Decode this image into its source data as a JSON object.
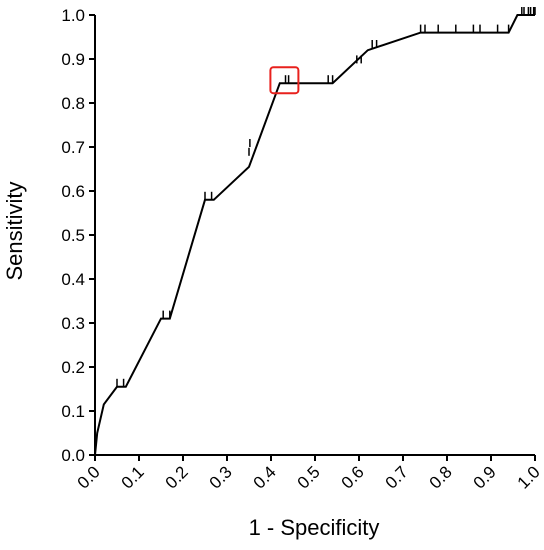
{
  "chart_data": {
    "type": "line",
    "title": "",
    "xlabel": "1 - Specificity",
    "ylabel": "Sensitivity",
    "xlim": [
      0.0,
      1.0
    ],
    "ylim": [
      0.0,
      1.0
    ],
    "x_ticks": [
      "0.0",
      "0.1",
      "0.2",
      "0.3",
      "0.4",
      "0.5",
      "0.6",
      "0.7",
      "0.8",
      "0.9",
      "1.0"
    ],
    "y_ticks": [
      "0.0",
      "0.1",
      "0.2",
      "0.3",
      "0.4",
      "0.5",
      "0.6",
      "0.7",
      "0.8",
      "0.9",
      "1.0"
    ],
    "grid": false,
    "legend": "none",
    "line_color": "#000000",
    "highlight_color": "#e8211d",
    "series": [
      {
        "x": [
          0.0,
          0.005,
          0.02,
          0.05,
          0.07,
          0.15,
          0.17,
          0.25,
          0.27,
          0.35,
          0.42,
          0.44,
          0.54,
          0.62,
          0.74,
          0.94,
          0.96,
          1.0
        ],
        "y": [
          0.0,
          0.05,
          0.115,
          0.155,
          0.155,
          0.31,
          0.31,
          0.58,
          0.58,
          0.655,
          0.845,
          0.845,
          0.845,
          0.92,
          0.96,
          0.96,
          1.0,
          1.0
        ]
      }
    ],
    "censor_ticks": [
      {
        "x": 0.05,
        "y": 0.155
      },
      {
        "x": 0.065,
        "y": 0.155
      },
      {
        "x": 0.155,
        "y": 0.31
      },
      {
        "x": 0.17,
        "y": 0.31
      },
      {
        "x": 0.25,
        "y": 0.58
      },
      {
        "x": 0.265,
        "y": 0.58
      },
      {
        "x": 0.35,
        "y": 0.68
      },
      {
        "x": 0.352,
        "y": 0.7
      },
      {
        "x": 0.433,
        "y": 0.845
      },
      {
        "x": 0.44,
        "y": 0.845
      },
      {
        "x": 0.53,
        "y": 0.845
      },
      {
        "x": 0.54,
        "y": 0.845
      },
      {
        "x": 0.595,
        "y": 0.89
      },
      {
        "x": 0.605,
        "y": 0.89
      },
      {
        "x": 0.63,
        "y": 0.925
      },
      {
        "x": 0.64,
        "y": 0.925
      },
      {
        "x": 0.74,
        "y": 0.96
      },
      {
        "x": 0.75,
        "y": 0.96
      },
      {
        "x": 0.78,
        "y": 0.96
      },
      {
        "x": 0.82,
        "y": 0.96
      },
      {
        "x": 0.86,
        "y": 0.96
      },
      {
        "x": 0.875,
        "y": 0.96
      },
      {
        "x": 0.915,
        "y": 0.96
      },
      {
        "x": 0.94,
        "y": 0.96
      },
      {
        "x": 0.97,
        "y": 1.0
      },
      {
        "x": 0.975,
        "y": 1.0
      },
      {
        "x": 0.985,
        "y": 1.0
      },
      {
        "x": 0.99,
        "y": 1.0
      },
      {
        "x": 0.997,
        "y": 1.0
      },
      {
        "x": 1.0,
        "y": 1.0
      }
    ],
    "highlight_point": {
      "x": 0.435,
      "y": 0.845
    }
  }
}
